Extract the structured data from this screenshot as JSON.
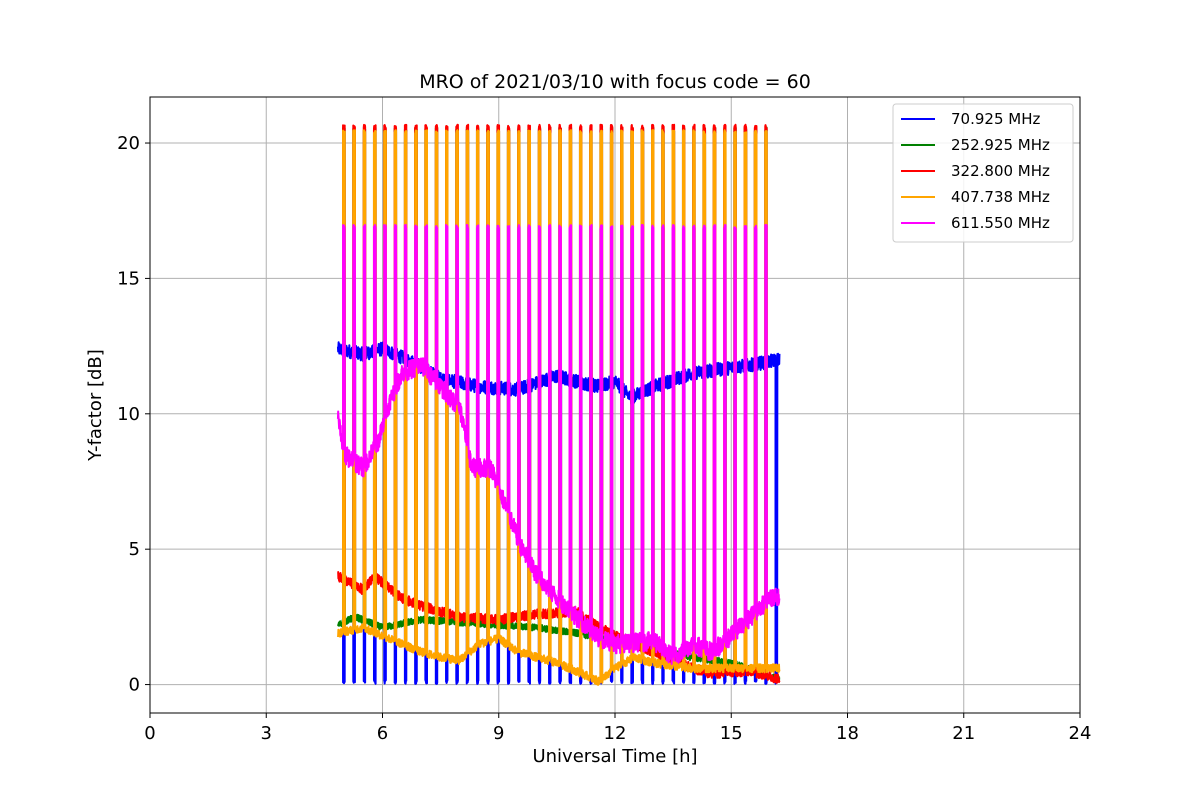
{
  "chart_data": {
    "type": "line",
    "title": "MRO of 2021/03/10 with focus code = 60",
    "xlabel": "Universal Time [h]",
    "ylabel": "Y-factor [dB]",
    "xlim": [
      0,
      24
    ],
    "ylim": [
      -1.05,
      21.7
    ],
    "xticks": [
      0,
      3,
      6,
      9,
      12,
      15,
      18,
      21,
      24
    ],
    "yticks": [
      0,
      5,
      10,
      15,
      20
    ],
    "grid": true,
    "legend_position": "top-right",
    "data_time_range": [
      4.85,
      16.25
    ],
    "pulse_period_h": 0.2657,
    "pulse_start_h": 4.98,
    "series": [
      {
        "name": " 70.925 MHz",
        "color": "#0000ff",
        "baseline": [
          [
            4.85,
            12.4
          ],
          [
            5.5,
            12.2
          ],
          [
            6.0,
            12.4
          ],
          [
            6.8,
            11.9
          ],
          [
            7.5,
            11.3
          ],
          [
            8.5,
            11.0
          ],
          [
            9.5,
            10.9
          ],
          [
            10.5,
            11.4
          ],
          [
            11.0,
            11.2
          ],
          [
            11.6,
            11.0
          ],
          [
            12.0,
            11.2
          ],
          [
            12.4,
            10.6
          ],
          [
            13.0,
            11.0
          ],
          [
            14.0,
            11.5
          ],
          [
            15.0,
            11.7
          ],
          [
            15.5,
            11.8
          ],
          [
            16.25,
            12.0
          ]
        ],
        "pulse_level": 0.1,
        "pulse_until": 16.25,
        "noise": 0.25
      },
      {
        "name": "252.925 MHz",
        "color": "#008000",
        "baseline": [
          [
            4.85,
            2.2
          ],
          [
            5.3,
            2.5
          ],
          [
            6.0,
            2.1
          ],
          [
            7.0,
            2.4
          ],
          [
            8.0,
            2.3
          ],
          [
            9.0,
            2.2
          ],
          [
            10.0,
            2.1
          ],
          [
            11.0,
            1.9
          ],
          [
            12.0,
            1.6
          ],
          [
            13.0,
            1.3
          ],
          [
            14.0,
            1.0
          ],
          [
            15.0,
            0.8
          ],
          [
            16.25,
            0.2
          ]
        ],
        "pulse_level": 20.5,
        "pulse_until": 16.05,
        "noise": 0.12
      },
      {
        "name": "322.800 MHz",
        "color": "#ff0000",
        "baseline": [
          [
            4.85,
            4.0
          ],
          [
            5.5,
            3.5
          ],
          [
            5.8,
            4.0
          ],
          [
            6.5,
            3.2
          ],
          [
            7.0,
            2.9
          ],
          [
            8.0,
            2.5
          ],
          [
            9.0,
            2.4
          ],
          [
            10.0,
            2.6
          ],
          [
            11.0,
            2.7
          ],
          [
            11.5,
            2.2
          ],
          [
            12.0,
            1.8
          ],
          [
            13.0,
            1.2
          ],
          [
            14.0,
            0.6
          ],
          [
            14.5,
            0.4
          ],
          [
            15.5,
            0.5
          ],
          [
            16.25,
            0.2
          ]
        ],
        "pulse_level": 20.6,
        "pulse_until": 16.05,
        "noise": 0.18
      },
      {
        "name": "407.738 MHz",
        "color": "#ffa500",
        "baseline": [
          [
            4.85,
            1.9
          ],
          [
            5.5,
            2.1
          ],
          [
            6.5,
            1.5
          ],
          [
            7.0,
            1.2
          ],
          [
            7.5,
            1.0
          ],
          [
            8.0,
            0.9
          ],
          [
            8.5,
            1.5
          ],
          [
            9.0,
            1.7
          ],
          [
            9.5,
            1.2
          ],
          [
            10.0,
            1.0
          ],
          [
            10.5,
            0.8
          ],
          [
            11.0,
            0.5
          ],
          [
            11.6,
            0.1
          ],
          [
            12.0,
            0.6
          ],
          [
            12.5,
            1.0
          ],
          [
            13.0,
            0.8
          ],
          [
            14.0,
            0.6
          ],
          [
            15.0,
            0.6
          ],
          [
            16.25,
            0.6
          ]
        ],
        "pulse_level": 20.4,
        "pulse_until": 16.05,
        "noise": 0.15
      },
      {
        "name": "611.550 MHz",
        "color": "#ff00ff",
        "baseline": [
          [
            4.85,
            10.1
          ],
          [
            5.0,
            8.5
          ],
          [
            5.5,
            8.0
          ],
          [
            5.9,
            9.0
          ],
          [
            6.2,
            10.5
          ],
          [
            6.5,
            11.5
          ],
          [
            7.0,
            11.8
          ],
          [
            7.5,
            11.0
          ],
          [
            8.0,
            10.2
          ],
          [
            8.3,
            8.0
          ],
          [
            8.8,
            8.0
          ],
          [
            9.2,
            6.5
          ],
          [
            9.6,
            5.0
          ],
          [
            10.0,
            4.0
          ],
          [
            10.5,
            3.2
          ],
          [
            11.0,
            2.5
          ],
          [
            11.5,
            1.8
          ],
          [
            12.0,
            1.5
          ],
          [
            13.0,
            1.6
          ],
          [
            13.5,
            1.0
          ],
          [
            14.0,
            1.5
          ],
          [
            14.5,
            1.2
          ],
          [
            15.0,
            1.8
          ],
          [
            15.5,
            2.5
          ],
          [
            16.0,
            3.2
          ],
          [
            16.25,
            3.2
          ]
        ],
        "pulse_level": 16.9,
        "pulse_until": 16.05,
        "noise": 0.35
      }
    ]
  }
}
